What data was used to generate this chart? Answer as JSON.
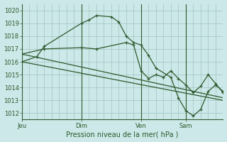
{
  "bg_color": "#cce8e8",
  "grid_color": "#99bbbb",
  "line_color": "#2d5a2d",
  "title": "Pression niveau de la mer( hPa )",
  "ylim": [
    1011.5,
    1020.5
  ],
  "yticks": [
    1012,
    1013,
    1014,
    1015,
    1016,
    1017,
    1018,
    1019,
    1020
  ],
  "day_labels": [
    "Jeu",
    "Dim",
    "Ven",
    "Sam"
  ],
  "day_positions": [
    0,
    8,
    16,
    22
  ],
  "xlim": [
    0,
    27
  ],
  "series1_x": [
    0,
    2,
    3,
    8,
    9,
    10,
    12,
    13,
    14,
    15,
    16,
    17,
    18,
    20,
    21,
    22,
    23,
    24,
    25,
    26,
    27
  ],
  "series1_y": [
    1016.0,
    1016.4,
    1017.2,
    1019.0,
    1019.25,
    1019.6,
    1019.5,
    1019.1,
    1018.0,
    1017.5,
    1017.3,
    1016.5,
    1015.5,
    1014.8,
    1013.2,
    1012.2,
    1011.8,
    1012.3,
    1013.7,
    1014.2,
    1013.7
  ],
  "series2_x": [
    0,
    3,
    8,
    10,
    14,
    15,
    16,
    17,
    18,
    19,
    20,
    21,
    22,
    23,
    24,
    25,
    26,
    27
  ],
  "series2_y": [
    1016.6,
    1017.0,
    1017.1,
    1017.0,
    1017.5,
    1017.3,
    1015.3,
    1014.7,
    1015.0,
    1014.8,
    1015.3,
    1014.7,
    1014.2,
    1013.6,
    1014.1,
    1015.0,
    1014.3,
    1013.6
  ],
  "series3_x": [
    0,
    27
  ],
  "series3_y": [
    1016.0,
    1013.0
  ],
  "series4_x": [
    0,
    27
  ],
  "series4_y": [
    1016.6,
    1013.2
  ],
  "title_fontsize": 7,
  "tick_fontsize": 6
}
